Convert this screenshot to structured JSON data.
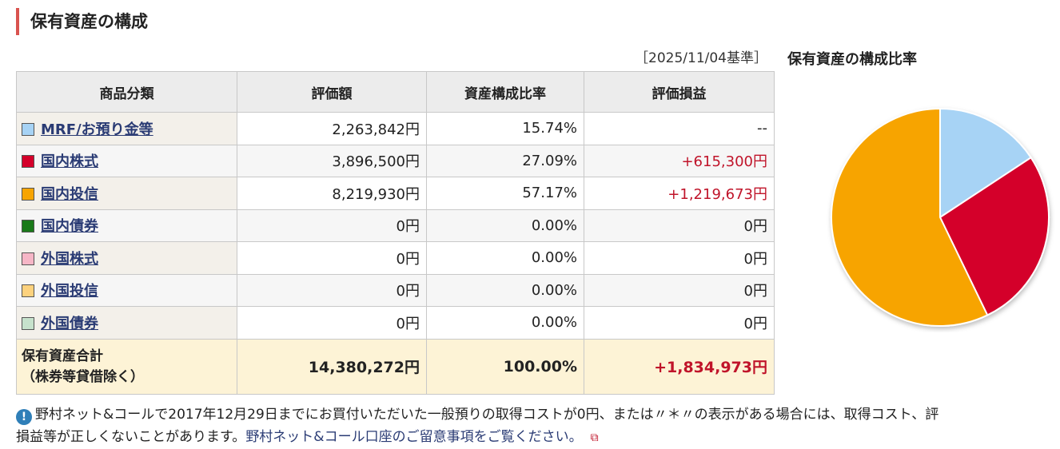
{
  "section": {
    "title": "保有資産の構成"
  },
  "basis_date": "［2025/11/04基準］",
  "chart_title": "保有資産の構成比率",
  "table": {
    "headers": [
      "商品分類",
      "評価額",
      "資産構成比率",
      "評価損益"
    ],
    "rows": [
      {
        "label": "MRF/お預り金等",
        "color": "#a7d3f5",
        "value": "2,263,842円",
        "ratio": "15.74%",
        "pl": "--"
      },
      {
        "label": "国内株式",
        "color": "#d4002a",
        "value": "3,896,500円",
        "ratio": "27.09%",
        "pl": "+615,300円"
      },
      {
        "label": "国内投信",
        "color": "#f7a400",
        "value": "8,219,930円",
        "ratio": "57.17%",
        "pl": "+1,219,673円"
      },
      {
        "label": "国内債券",
        "color": "#1a7a1a",
        "value": "0円",
        "ratio": "0.00%",
        "pl": "0円"
      },
      {
        "label": "外国株式",
        "color": "#f6b6c6",
        "value": "0円",
        "ratio": "0.00%",
        "pl": "0円"
      },
      {
        "label": "外国投信",
        "color": "#fdd27e",
        "value": "0円",
        "ratio": "0.00%",
        "pl": "0円"
      },
      {
        "label": "外国債券",
        "color": "#c6e2cc",
        "value": "0円",
        "ratio": "0.00%",
        "pl": "0円"
      }
    ],
    "total": {
      "label_line1": "保有資産合計",
      "label_line2": "（株券等貸借除く）",
      "value": "14,380,272円",
      "ratio": "100.00%",
      "pl": "+1,834,973円"
    }
  },
  "pie": [
    {
      "label": "MRF/お預り金等",
      "ratio": 15.74,
      "color": "#a7d3f5"
    },
    {
      "label": "国内株式",
      "ratio": 27.09,
      "color": "#d4002a"
    },
    {
      "label": "国内投信",
      "ratio": 57.17,
      "color": "#f7a400"
    }
  ],
  "notice": {
    "icon": "info-icon",
    "line1": "野村ネット&コールで2017年12月29日までにお買付いただいた一般預りの取得コストが0円、または〃＊〃の表示がある場合には、取得コスト、評",
    "line2_text": "損益等が正しくないことがあります。",
    "link": "野村ネット&コール口座のご留意事項をご覧ください。",
    "ext_icon": "external-link-icon"
  }
}
